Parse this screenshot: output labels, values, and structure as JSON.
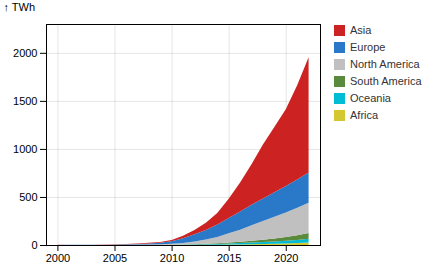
{
  "chart_data": {
    "type": "area",
    "stacked": true,
    "title": "",
    "ylabel": "TWh",
    "x": [
      2000,
      2001,
      2002,
      2003,
      2004,
      2005,
      2006,
      2007,
      2008,
      2009,
      2010,
      2011,
      2012,
      2013,
      2014,
      2015,
      2016,
      2017,
      2018,
      2019,
      2020,
      2021,
      2022
    ],
    "series": [
      {
        "name": "Africa",
        "color": "#d4c832",
        "values": [
          0.1,
          0.1,
          0.1,
          0.1,
          0.1,
          0.1,
          0.1,
          0.1,
          0.2,
          0.2,
          0.3,
          0.5,
          0.9,
          1.5,
          2.5,
          4.0,
          5.5,
          7.5,
          10.0,
          13.0,
          16.5,
          20.0,
          25.0
        ]
      },
      {
        "name": "Oceania",
        "color": "#00bcd4",
        "values": [
          0.1,
          0.1,
          0.1,
          0.1,
          0.1,
          0.2,
          0.2,
          0.3,
          0.4,
          0.6,
          1.0,
          2.5,
          4.5,
          6.5,
          9.0,
          12.0,
          15.0,
          18.0,
          21.0,
          24.0,
          28.0,
          33.0,
          39.0
        ]
      },
      {
        "name": "South America",
        "color": "#5a8a3c",
        "values": [
          0.1,
          0.1,
          0.1,
          0.1,
          0.1,
          0.2,
          0.3,
          0.4,
          0.5,
          0.7,
          1.0,
          1.5,
          2.5,
          4.0,
          6.5,
          10.0,
          14.0,
          19.0,
          24.0,
          31.0,
          39.0,
          49.0,
          61.0
        ]
      },
      {
        "name": "North America",
        "color": "#c0c0c0",
        "values": [
          0.5,
          0.6,
          0.8,
          1.0,
          1.3,
          1.8,
          2.5,
          3.5,
          5.0,
          7.0,
          11.0,
          17.0,
          28.0,
          45.0,
          65.0,
          95.0,
          125.0,
          160.0,
          195.0,
          225.0,
          255.0,
          285.0,
          315.0
        ]
      },
      {
        "name": "Europe",
        "color": "#2979c8",
        "values": [
          0.5,
          0.7,
          1.0,
          1.4,
          2.0,
          3.0,
          4.5,
          6.5,
          10.0,
          15.0,
          25.0,
          50.0,
          75.0,
          100.0,
          130.0,
          160.0,
          190.0,
          215.0,
          235.0,
          255.0,
          275.0,
          295.0,
          315.0
        ]
      },
      {
        "name": "Asia",
        "color": "#cc2222",
        "values": [
          0.5,
          0.6,
          0.8,
          1.1,
          1.5,
          2.0,
          3.0,
          4.5,
          6.5,
          9.0,
          15.0,
          25.0,
          45.0,
          75.0,
          120.0,
          200.0,
          300.0,
          420.0,
          560.0,
          680.0,
          800.0,
          980.0,
          1200.0
        ]
      }
    ],
    "xlim": [
      1999,
      2023
    ],
    "ylim": [
      0,
      2300
    ],
    "yticks": [
      0,
      500,
      1000,
      1500,
      2000
    ],
    "xticks": [
      2000,
      2005,
      2010,
      2015,
      2020
    ],
    "grid": true,
    "legend": "right"
  }
}
